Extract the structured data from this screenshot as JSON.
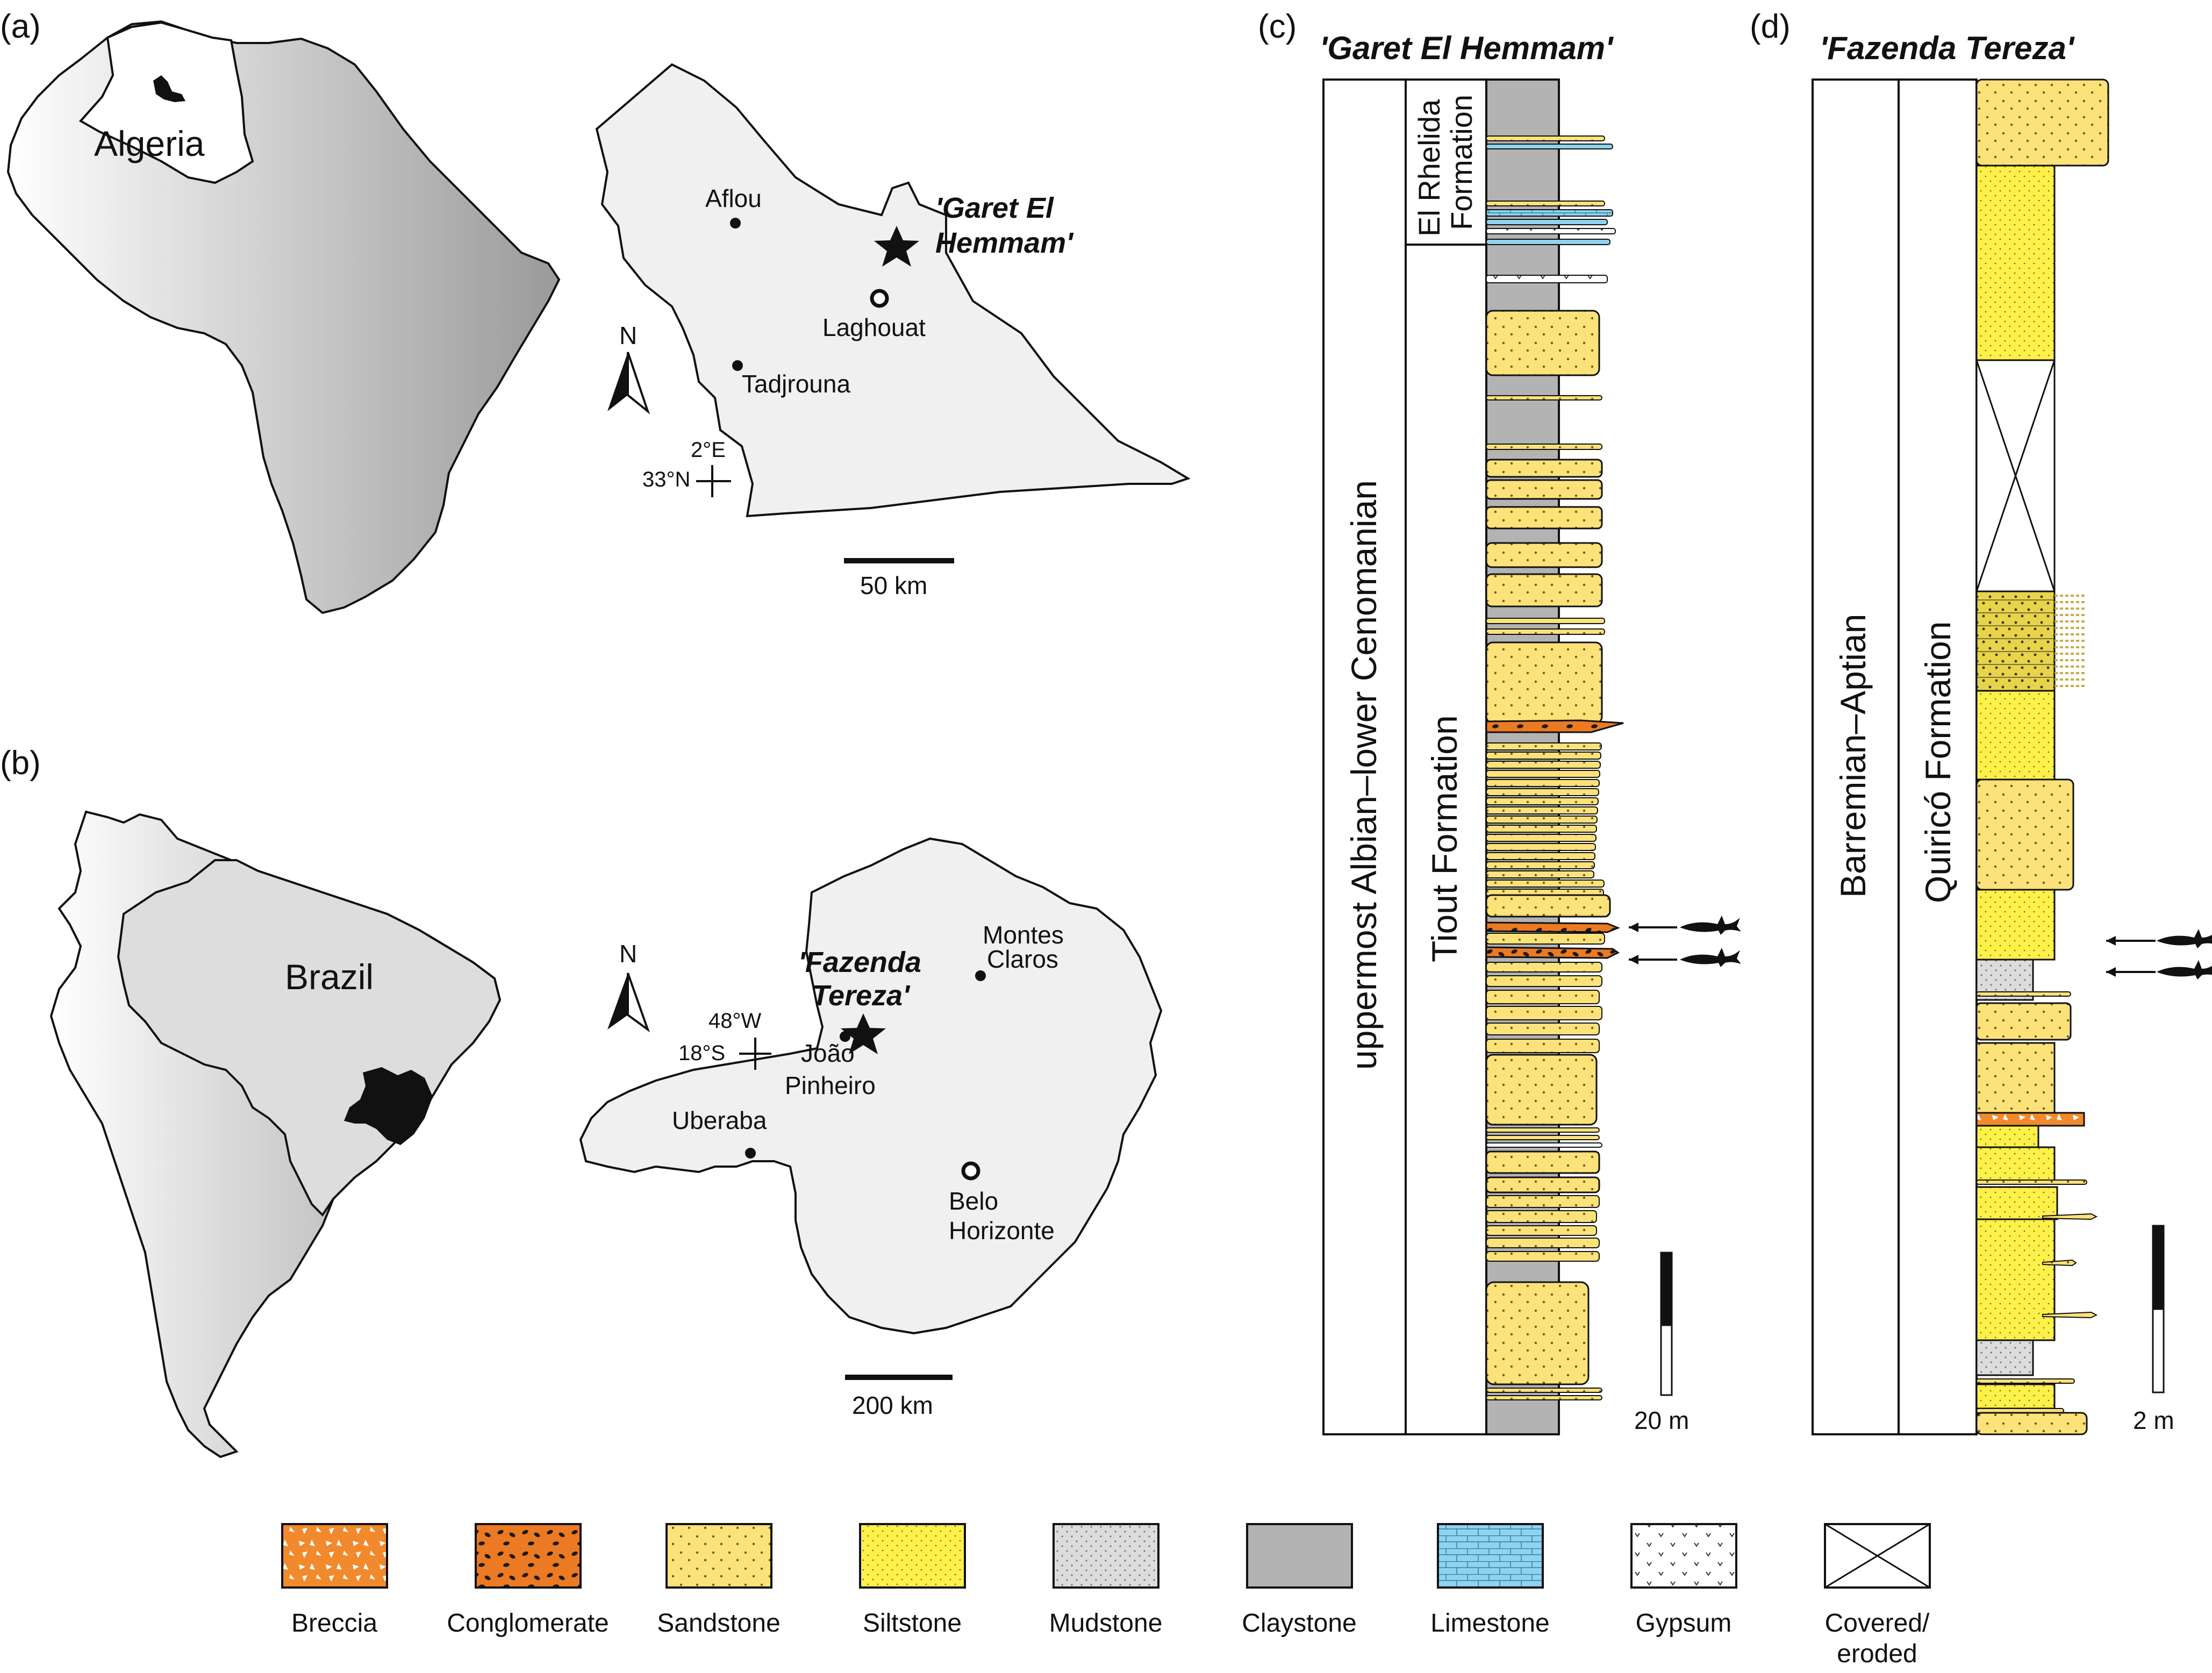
{
  "panel_a": {
    "label": "(a)",
    "country": "Algeria",
    "towns": {
      "aflou": "Aflou",
      "tadjrouna": "Tadjrouna",
      "laghouat": "Laghouat"
    },
    "site_line1": "'Garet El",
    "site_line2": "Hemmam'",
    "north": "N",
    "lon": "2°E",
    "lat": "33°N",
    "scale": "50 km"
  },
  "panel_b": {
    "label": "(b)",
    "country": "Brazil",
    "towns": {
      "montes_line1": "Montes",
      "montes_line2": "Claros",
      "joao_line1": "João",
      "joao_line2": "Pinheiro",
      "uberaba": "Uberaba",
      "belo_line1": "Belo",
      "belo_line2": "Horizonte"
    },
    "site_line1": "'Fazenda",
    "site_line2": "Tereza'",
    "north": "N",
    "lon": "48°W",
    "lat": "18°S",
    "scale": "200 km"
  },
  "panel_c": {
    "label": "(c)",
    "title": "'Garet El Hemmam'",
    "age": "uppermost Albian–lower Cenomanian",
    "formation_upper_line1": "El Rhelida",
    "formation_upper_line2": "Formation",
    "formation_lower": "Tiout Formation",
    "scale": "20 m"
  },
  "panel_d": {
    "label": "(d)",
    "title": "'Fazenda Tereza'",
    "age": "Barremian–Aptian",
    "formation": "Quiricó Formation",
    "scale": "2 m"
  },
  "legend": [
    {
      "label": "Breccia",
      "color": "#f08a2c"
    },
    {
      "label": "Conglomerate",
      "color": "#ec7a22"
    },
    {
      "label": "Sandstone",
      "color": "#fde27a"
    },
    {
      "label": "Siltstone",
      "color": "#fff04a"
    },
    {
      "label": "Mudstone",
      "color": "#d9d9d9"
    },
    {
      "label": "Claystone",
      "color": "#b3b3b3"
    },
    {
      "label": "Limestone",
      "color": "#8fd3ee"
    },
    {
      "label": "Gypsum",
      "color": "#ffffff"
    },
    {
      "label": "Covered/",
      "label2": "eroded",
      "color": "#ffffff"
    }
  ]
}
